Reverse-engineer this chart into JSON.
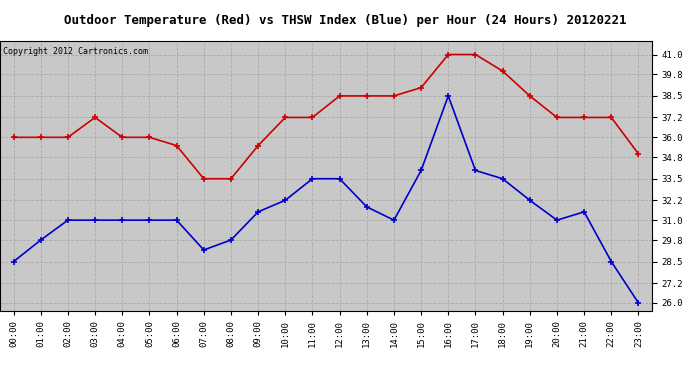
{
  "title": "Outdoor Temperature (Red) vs THSW Index (Blue) per Hour (24 Hours) 20120221",
  "copyright": "Copyright 2012 Cartronics.com",
  "hours": [
    "00:00",
    "01:00",
    "02:00",
    "03:00",
    "04:00",
    "05:00",
    "06:00",
    "07:00",
    "08:00",
    "09:00",
    "10:00",
    "11:00",
    "12:00",
    "13:00",
    "14:00",
    "15:00",
    "16:00",
    "17:00",
    "18:00",
    "19:00",
    "20:00",
    "21:00",
    "22:00",
    "23:00"
  ],
  "red_temp": [
    36.0,
    36.0,
    36.0,
    37.2,
    36.0,
    36.0,
    35.5,
    33.5,
    33.5,
    35.5,
    37.2,
    37.2,
    38.5,
    38.5,
    38.5,
    39.0,
    41.0,
    41.0,
    40.0,
    38.5,
    37.2,
    37.2,
    37.2,
    35.0
  ],
  "blue_thsw": [
    28.5,
    29.8,
    31.0,
    31.0,
    31.0,
    31.0,
    31.0,
    29.2,
    29.8,
    31.5,
    32.2,
    33.5,
    33.5,
    31.8,
    31.0,
    34.0,
    38.5,
    34.0,
    33.5,
    32.2,
    31.0,
    31.5,
    28.5,
    26.0
  ],
  "red_color": "#cc0000",
  "blue_color": "#0000cc",
  "title_bg_color": "#ffffff",
  "plot_bg_color": "#c8c8c8",
  "grid_color": "#aaaaaa",
  "ylim_min": 25.5,
  "ylim_max": 41.8,
  "yticks": [
    26.0,
    27.2,
    28.5,
    29.8,
    31.0,
    32.2,
    33.5,
    34.8,
    36.0,
    37.2,
    38.5,
    39.8,
    41.0
  ]
}
